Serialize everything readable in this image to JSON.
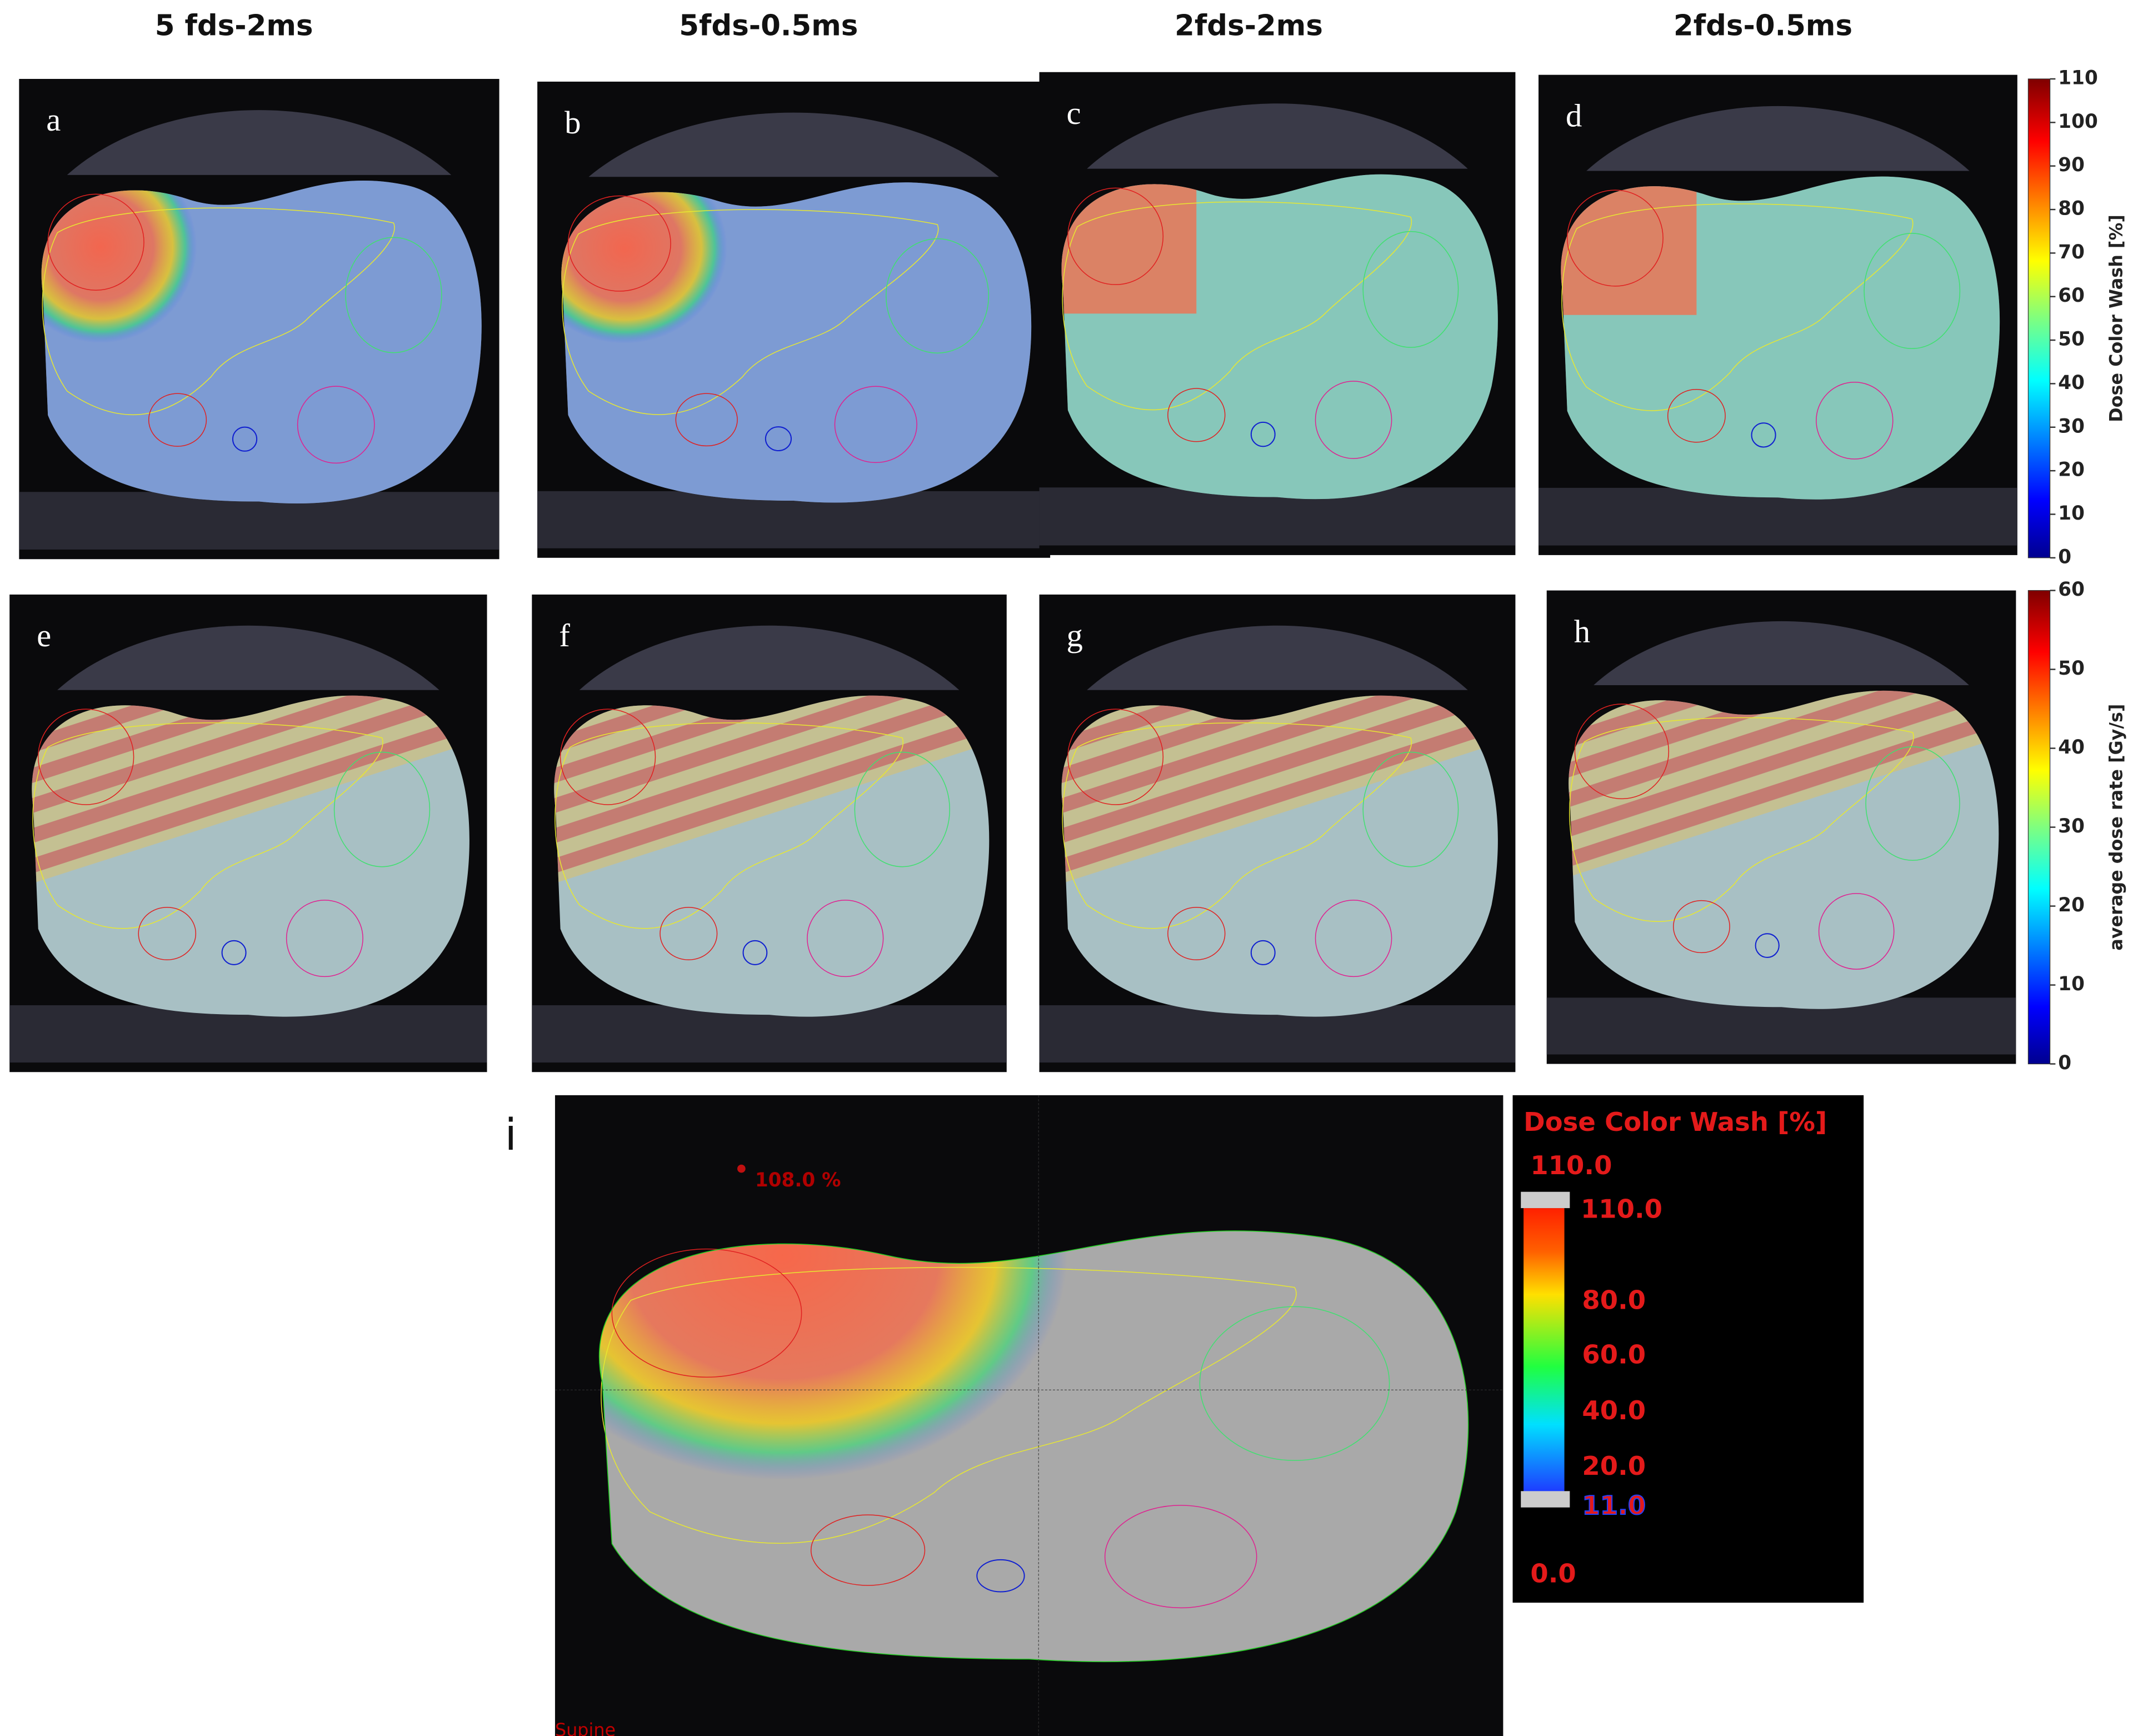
{
  "columns": [
    "5 fds-2ms",
    "5fds-0.5ms",
    "2fds-2ms",
    "2fds-0.5ms"
  ],
  "panels": [
    "a",
    "b",
    "c",
    "d",
    "e",
    "f",
    "g",
    "h"
  ],
  "colorbars": [
    {
      "title": "Dose Color Wash [%]",
      "ticks": [
        0,
        10,
        20,
        30,
        40,
        50,
        60,
        70,
        80,
        90,
        100,
        110
      ]
    },
    {
      "title": "average dose rate [Gy/s]",
      "ticks": [
        0,
        10,
        20,
        30,
        40,
        50,
        60
      ]
    }
  ],
  "panel_i": {
    "label": "i",
    "annotation": "108.0 %",
    "orientation": "Supine",
    "legend": {
      "title": "Dose Color Wash [%]",
      "max": "110.0",
      "upper": "110.0",
      "ticks": [
        "80.0",
        "60.0",
        "40.0",
        "20.0"
      ],
      "lower": "11.0",
      "min": "0.0"
    }
  }
}
